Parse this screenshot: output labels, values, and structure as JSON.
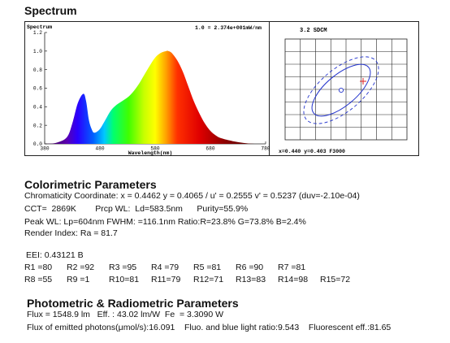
{
  "section_titles": {
    "spectrum": "Spectrum",
    "colorimetric": "Colorimetric Parameters",
    "photometric": "Photometric & Radiometric Parameters"
  },
  "chart_data": [
    {
      "type": "area",
      "title": "Spectrum",
      "scale_label": "1.0 = 2.374e+001mW/nm",
      "xlabel": "Wavelength(nm)",
      "ylabel": "",
      "xlim": [
        380,
        780
      ],
      "ylim": [
        0,
        1.2
      ],
      "x_ticks": [
        380,
        480,
        580,
        680,
        780
      ],
      "y_ticks": [
        0.0,
        0.2,
        0.4,
        0.6,
        0.8,
        1.0,
        1.2
      ],
      "x_tick_labels": [
        "380",
        "480",
        "580",
        "680",
        "780"
      ],
      "y_tick_labels": [
        "0.0",
        "0.2",
        "0.4",
        "0.6",
        "0.8",
        "1.0",
        "1.2"
      ],
      "grid": false,
      "fill": "visible-spectrum colors",
      "x": [
        380,
        400,
        420,
        430,
        440,
        450,
        455,
        460,
        465,
        470,
        480,
        490,
        500,
        510,
        520,
        530,
        540,
        550,
        560,
        570,
        580,
        590,
        600,
        604,
        610,
        620,
        630,
        640,
        650,
        660,
        670,
        680,
        690,
        700,
        720,
        740,
        760,
        780
      ],
      "y": [
        0.0,
        0.01,
        0.07,
        0.22,
        0.44,
        0.54,
        0.46,
        0.26,
        0.16,
        0.12,
        0.16,
        0.26,
        0.36,
        0.42,
        0.46,
        0.5,
        0.56,
        0.64,
        0.74,
        0.84,
        0.93,
        0.98,
        1.0,
        1.0,
        0.98,
        0.9,
        0.78,
        0.62,
        0.46,
        0.33,
        0.22,
        0.14,
        0.09,
        0.06,
        0.03,
        0.01,
        0.0,
        0.0
      ]
    },
    {
      "type": "scatter",
      "title": "3.2 SDCM",
      "point": {
        "x": 0.44,
        "y": 0.403
      },
      "readout": "x=0.440 y=0.403 F3000",
      "grid": true,
      "annotations": [
        "solid ellipse",
        "dashed ellipse",
        "red cross marker"
      ]
    }
  ],
  "colorimetric": {
    "line1": "Chromaticity Coordinate: x = 0.4462 y = 0.4065 / u' = 0.2555 v' = 0.5237 (duv=-2.10e-04)",
    "line2": "CCT=  2869K        Prcp WL:  Ld=583.5nm      Purity=55.9%",
    "line3": "Peak WL: Lp=604nm  FWHM:  =116.1nm  Ratio:R=23.8% G=73.8% B=2.4%",
    "line4": "Render Index: Ra = 81.7",
    "eei": "EEI: 0.43121 B",
    "r_row1": [
      "R1 =80",
      "R2 =92",
      "R3 =95",
      "R4 =79",
      "R5 =81",
      "R6 =90",
      "R7 =81"
    ],
    "r_row2": [
      "R8 =55",
      "R9 =1",
      "R10=81",
      "R11=79",
      "R12=71",
      "R13=83",
      "R14=98",
      "R15=72"
    ]
  },
  "photometric": {
    "line1": "Flux = 1548.9 lm   Eff. : 43.02 lm/W  Fe  = 3.3090 W",
    "line2": "Flux of emitted photons(μmol/s):16.091    Fluo. and blue light ratio:9.543    Fluorescent eff.:81.65"
  },
  "colors": {
    "frame": "#222222",
    "ellipse": "#2233cc",
    "marker": "#dd2222"
  }
}
